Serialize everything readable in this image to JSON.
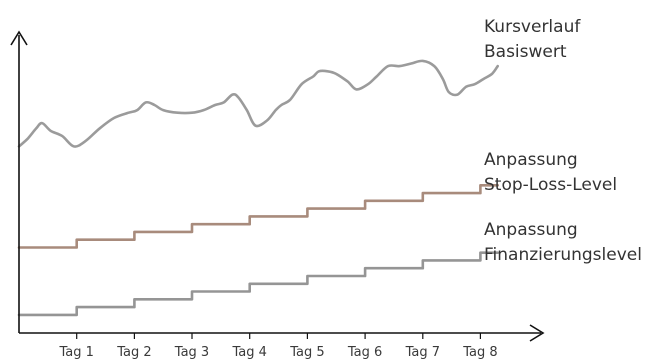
{
  "chart_data": {
    "type": "line",
    "title": "",
    "xlabel": "",
    "ylabel": "",
    "categories": [
      "Tag 1",
      "Tag 2",
      "Tag 3",
      "Tag 4",
      "Tag 5",
      "Tag 6",
      "Tag 7",
      "Tag 8"
    ],
    "series": [
      {
        "name": "Kursverlauf Basiswert",
        "color": "#9b9b9b",
        "style": "line",
        "points": [
          [
            0.0,
            72
          ],
          [
            0.15,
            75
          ],
          [
            0.3,
            79
          ],
          [
            0.4,
            81
          ],
          [
            0.55,
            78
          ],
          [
            0.75,
            76
          ],
          [
            0.95,
            72
          ],
          [
            1.15,
            74
          ],
          [
            1.4,
            79
          ],
          [
            1.65,
            83
          ],
          [
            1.9,
            85
          ],
          [
            2.05,
            86
          ],
          [
            2.2,
            89
          ],
          [
            2.35,
            88
          ],
          [
            2.5,
            86
          ],
          [
            2.75,
            85
          ],
          [
            3.0,
            85
          ],
          [
            3.2,
            86
          ],
          [
            3.4,
            88
          ],
          [
            3.55,
            89
          ],
          [
            3.7,
            92
          ],
          [
            3.8,
            91
          ],
          [
            3.95,
            86
          ],
          [
            4.1,
            80
          ],
          [
            4.3,
            82
          ],
          [
            4.45,
            86
          ],
          [
            4.55,
            88
          ],
          [
            4.7,
            90
          ],
          [
            4.9,
            96
          ],
          [
            5.1,
            99
          ],
          [
            5.2,
            101
          ],
          [
            5.35,
            101
          ],
          [
            5.5,
            100
          ],
          [
            5.7,
            97
          ],
          [
            5.85,
            94
          ],
          [
            6.05,
            96
          ],
          [
            6.2,
            99
          ],
          [
            6.4,
            103
          ],
          [
            6.6,
            103
          ],
          [
            6.8,
            104
          ],
          [
            7.0,
            105
          ],
          [
            7.2,
            103
          ],
          [
            7.35,
            98
          ],
          [
            7.45,
            93
          ],
          [
            7.6,
            92
          ],
          [
            7.75,
            95
          ],
          [
            7.9,
            96
          ],
          [
            8.05,
            98
          ],
          [
            8.2,
            100
          ],
          [
            8.3,
            103
          ]
        ]
      },
      {
        "name": "Anpassung Stop-Loss-Level",
        "color": "#a88b7c",
        "style": "step",
        "step_values": [
          33,
          36,
          39,
          42,
          45,
          48,
          51,
          54,
          57
        ],
        "step_start": 0,
        "step_end": 8.3
      },
      {
        "name": "Anpassung Finanzierungslevel",
        "color": "#959595",
        "style": "step",
        "step_values": [
          7,
          10,
          13,
          16,
          19,
          22,
          25,
          28,
          31
        ],
        "step_start": 0,
        "step_end": 8.3
      }
    ],
    "xlim": [
      0,
      9.05
    ],
    "ylim": [
      0,
      115
    ],
    "grid": false,
    "legend": "inline-right",
    "axis_color": "#111111"
  },
  "legend": {
    "kurs": [
      "Kursverlauf",
      "Basiswert"
    ],
    "stop": [
      "Anpassung",
      "Stop-Loss-Level"
    ],
    "fin": [
      "Anpassung",
      "Finanzierungslevel"
    ]
  }
}
